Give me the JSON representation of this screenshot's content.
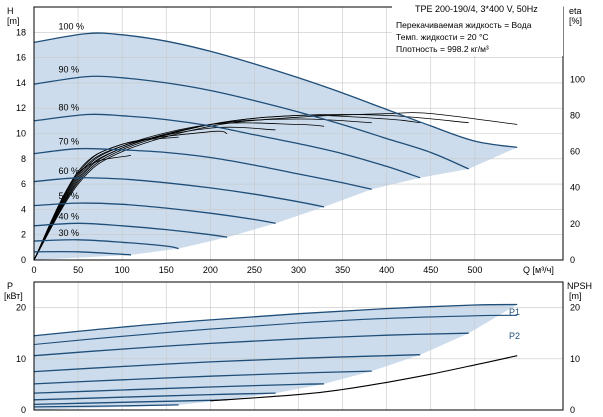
{
  "chart_data": [
    {
      "type": "line",
      "panel": "head_efficiency",
      "title": "TPE 200-190/4, 3*400 V, 50Hz",
      "info_lines": [
        "Перекачиваемая жидкость = Вода",
        "Темп. жидкости = 20 °C",
        "Плотность = 998.2 кг/м³"
      ],
      "xlabel": "Q [м³/ч]",
      "ylabel_left": [
        "H",
        "[m]"
      ],
      "ylabel_right": [
        "eta",
        "[%]"
      ],
      "xlim": [
        0,
        600
      ],
      "ylim_left": [
        0,
        20
      ],
      "ylim_right": [
        0,
        140
      ],
      "x_ticks": [
        0,
        50,
        100,
        150,
        200,
        250,
        300,
        350,
        400,
        450,
        500
      ],
      "y_ticks_left": [
        0,
        2,
        4,
        6,
        8,
        10,
        12,
        14,
        16,
        18
      ],
      "y_ticks_right": [
        0,
        20,
        40,
        60,
        80,
        100
      ],
      "grid": true,
      "shaded_region_color": "#ccdcec",
      "curve_color": "#1f4e79",
      "series": [
        {
          "name": "100 %",
          "q": [
            0,
            60,
            100,
            150,
            200,
            250,
            300,
            350,
            400,
            450,
            500,
            548
          ],
          "h": [
            17.2,
            17.9,
            17.8,
            17.3,
            16.5,
            15.5,
            14.4,
            13.2,
            11.9,
            10.6,
            9.4,
            8.9
          ]
        },
        {
          "name": "90 %",
          "q": [
            0,
            60,
            100,
            150,
            200,
            250,
            300,
            350,
            400,
            450,
            493
          ],
          "h": [
            13.9,
            14.5,
            14.4,
            14.0,
            13.4,
            12.6,
            11.7,
            10.7,
            9.6,
            8.5,
            7.2
          ]
        },
        {
          "name": "80 %",
          "q": [
            0,
            60,
            100,
            150,
            200,
            250,
            300,
            350,
            400,
            438
          ],
          "h": [
            11.0,
            11.5,
            11.4,
            11.1,
            10.6,
            9.9,
            9.2,
            8.4,
            7.4,
            6.5
          ]
        },
        {
          "name": "70 %",
          "q": [
            0,
            50,
            100,
            150,
            200,
            250,
            300,
            350,
            383
          ],
          "h": [
            8.4,
            8.8,
            8.7,
            8.5,
            8.1,
            7.5,
            6.8,
            6.1,
            5.6
          ]
        },
        {
          "name": "60 %",
          "q": [
            0,
            50,
            100,
            150,
            200,
            250,
            300,
            329
          ],
          "h": [
            6.2,
            6.5,
            6.4,
            6.1,
            5.7,
            5.2,
            4.6,
            4.2
          ]
        },
        {
          "name": "50 %",
          "q": [
            0,
            50,
            100,
            150,
            200,
            250,
            274
          ],
          "h": [
            4.3,
            4.5,
            4.4,
            4.1,
            3.7,
            3.2,
            2.9
          ]
        },
        {
          "name": "40 %",
          "q": [
            0,
            50,
            100,
            150,
            200,
            219
          ],
          "h": [
            2.7,
            2.9,
            2.7,
            2.4,
            2.0,
            1.8
          ]
        },
        {
          "name": "30 %",
          "q": [
            0,
            50,
            100,
            150,
            164
          ],
          "h": [
            1.5,
            1.6,
            1.4,
            1.1,
            0.9
          ]
        },
        {
          "name": "",
          "q": [
            0,
            50,
            100,
            110
          ],
          "h": [
            0.65,
            0.65,
            0.45,
            0.4
          ]
        }
      ],
      "eta_curves": [
        {
          "q": [
            0,
            50,
            100,
            200,
            300,
            400,
            450,
            548
          ],
          "eta": [
            0,
            42,
            60,
            74,
            79,
            81,
            81,
            75
          ]
        },
        {
          "q": [
            0,
            50,
            100,
            200,
            300,
            400,
            493
          ],
          "eta": [
            0,
            43,
            61,
            75,
            80,
            80,
            76
          ]
        },
        {
          "q": [
            0,
            50,
            100,
            200,
            300,
            400,
            438
          ],
          "eta": [
            0,
            44,
            62,
            75,
            80,
            78,
            76
          ]
        },
        {
          "q": [
            0,
            50,
            100,
            200,
            300,
            383
          ],
          "eta": [
            0,
            45,
            62,
            75,
            78,
            76
          ]
        },
        {
          "q": [
            0,
            50,
            100,
            200,
            300,
            329
          ],
          "eta": [
            0,
            46,
            63,
            75,
            75,
            74
          ]
        },
        {
          "q": [
            0,
            50,
            100,
            200,
            274
          ],
          "eta": [
            0,
            47,
            63,
            73,
            72
          ]
        },
        {
          "q": [
            0,
            50,
            100,
            200,
            219
          ],
          "eta": [
            0,
            48,
            64,
            71,
            70
          ]
        },
        {
          "q": [
            0,
            50,
            100,
            164
          ],
          "eta": [
            0,
            49,
            64,
            68
          ]
        },
        {
          "q": [
            0,
            50,
            110
          ],
          "eta": [
            0,
            48,
            58
          ]
        }
      ]
    },
    {
      "type": "line",
      "panel": "power_npsh",
      "ylabel_left": [
        "P",
        "[кВт]"
      ],
      "ylabel_right": [
        "NPSH",
        "[m]"
      ],
      "xlim": [
        0,
        600
      ],
      "ylim_left": [
        0,
        25
      ],
      "ylim_right": [
        0,
        25
      ],
      "y_ticks_left": [
        0,
        10,
        20
      ],
      "y_ticks_right": [
        0,
        10,
        20
      ],
      "grid": true,
      "labels": [
        "P1",
        "P2"
      ],
      "p1_series": [
        {
          "q": [
            0,
            100,
            200,
            300,
            400,
            500,
            548
          ],
          "p": [
            14.5,
            16.2,
            17.6,
            18.8,
            19.8,
            20.5,
            20.6
          ]
        },
        {
          "q": [
            0,
            100,
            200,
            300,
            400,
            493
          ],
          "p": [
            10.6,
            11.9,
            13.0,
            13.9,
            14.6,
            15.0
          ]
        },
        {
          "q": [
            0,
            100,
            200,
            300,
            400,
            438
          ],
          "p": [
            7.5,
            8.5,
            9.4,
            10.1,
            10.6,
            10.8
          ]
        },
        {
          "q": [
            0,
            100,
            200,
            300,
            383
          ],
          "p": [
            5.1,
            5.9,
            6.6,
            7.2,
            7.6
          ]
        },
        {
          "q": [
            0,
            100,
            200,
            300,
            329
          ],
          "p": [
            3.3,
            3.9,
            4.5,
            5.0,
            5.1
          ]
        },
        {
          "q": [
            0,
            100,
            200,
            274
          ],
          "p": [
            2.0,
            2.5,
            3.0,
            3.3
          ]
        },
        {
          "q": [
            0,
            100,
            200,
            219
          ],
          "p": [
            1.1,
            1.5,
            1.9,
            2.0
          ]
        },
        {
          "q": [
            0,
            100,
            164
          ],
          "p": [
            0.6,
            0.8,
            1.0
          ]
        }
      ],
      "p2_series": [
        {
          "q": [
            0,
            100,
            200,
            300,
            400,
            500,
            548
          ],
          "p": [
            12.8,
            14.4,
            15.8,
            17.0,
            17.9,
            18.4,
            18.5
          ]
        }
      ],
      "npsh_series": [
        {
          "q": [
            200,
            300,
            350,
            400,
            450,
            500,
            548
          ],
          "npsh": [
            1.8,
            3.0,
            4.0,
            5.4,
            7.0,
            8.8,
            10.6
          ]
        }
      ]
    }
  ]
}
